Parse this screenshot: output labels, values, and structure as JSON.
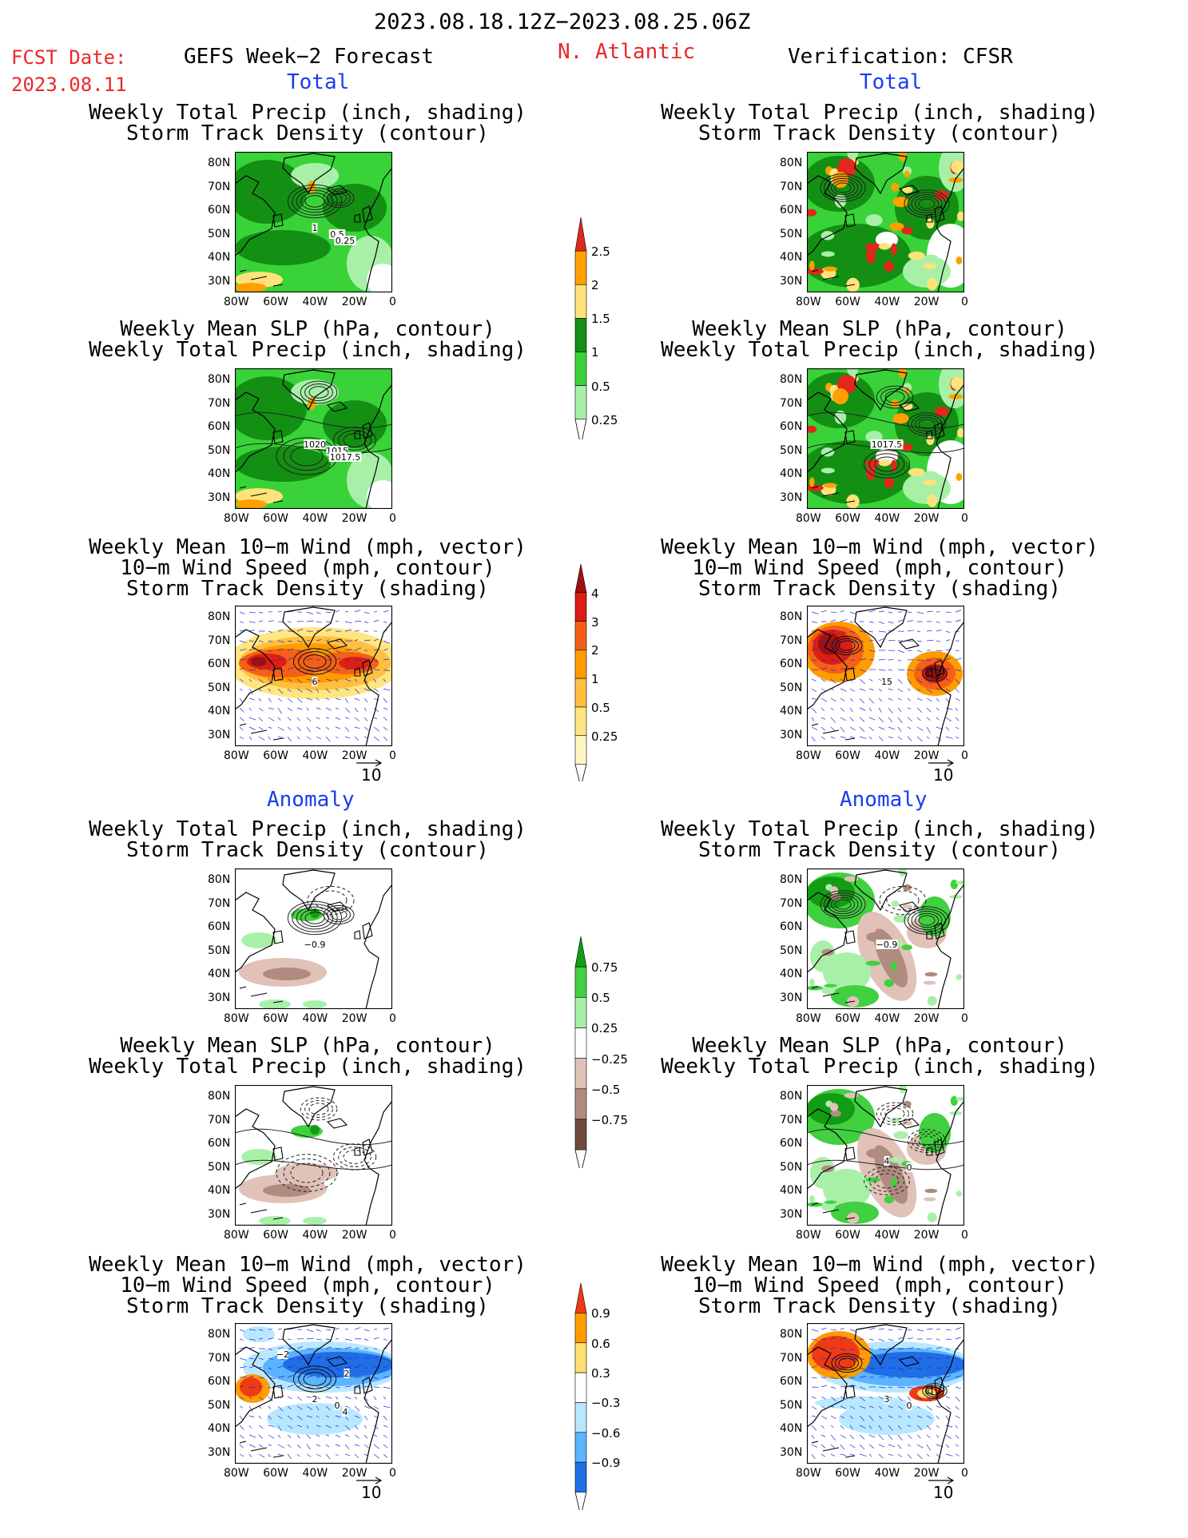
{
  "header": {
    "date_range": "2023.08.18.12Z−2023.08.25.06Z",
    "fcst_label": "FCST Date:",
    "fcst_date": "2023.08.11",
    "model_title": "GEFS Week−2 Forecast",
    "region": "N. Atlantic",
    "verification": "Verification: CFSR"
  },
  "sections": {
    "total": "Total",
    "anomaly": "Anomaly"
  },
  "panel_titles": {
    "precip_storm": [
      "Weekly Total Precip (inch, shading)",
      "Storm Track Density (contour)"
    ],
    "slp_precip": [
      "Weekly Mean SLP (hPa, contour)",
      "Weekly Total Precip (inch, shading)"
    ],
    "wind_storm": [
      "Weekly Mean 10−m Wind (mph, vector)",
      "10−m Wind Speed (mph, contour)",
      "Storm Track Density (shading)"
    ]
  },
  "axes": {
    "lat_ticks": [
      "80N",
      "70N",
      "60N",
      "50N",
      "40N",
      "30N"
    ],
    "lon_ticks": [
      "80W",
      "60W",
      "40W",
      "20W",
      "0"
    ]
  },
  "vector_ref": "10",
  "contour_labels": {
    "f_precip": [
      "1",
      "0.5",
      "0.25"
    ],
    "f_slp": [
      "1020",
      "1015",
      "1017.5"
    ],
    "f_wind": [
      "6"
    ],
    "v_slp": [
      "1017.5"
    ],
    "v_wind": [
      "15"
    ],
    "fa_precip": [
      "−0.9"
    ],
    "va_precip": [
      "−0.9"
    ],
    "fa_wind": [
      "2",
      "0",
      "4",
      "−2",
      "2"
    ],
    "va_wind": [
      "3",
      "0"
    ],
    "va_slp": [
      "4",
      "0"
    ]
  },
  "colorbars": {
    "precip_total": {
      "labels": [
        "2.5",
        "2",
        "1.5",
        "1",
        "0.5",
        "0.25"
      ],
      "colors": [
        "#e0281c",
        "#ffa000",
        "#ffe27a",
        "#138f13",
        "#39d339",
        "#a8f0a8"
      ]
    },
    "storm_total": {
      "labels": [
        "4",
        "3",
        "2",
        "1",
        "0.5",
        "0.25"
      ],
      "colors": [
        "#a01010",
        "#dc1e14",
        "#f56014",
        "#ff9c00",
        "#ffc040",
        "#ffe680",
        "#fff6c0"
      ]
    },
    "precip_anom": {
      "labels": [
        "0.75",
        "0.5",
        "0.25",
        "−0.25",
        "−0.5",
        "−0.75"
      ],
      "colors": [
        "#139c13",
        "#40d040",
        "#a8f0a8",
        "#ffffff",
        "#e0c2b8",
        "#b08c80",
        "#6e4a3e"
      ]
    },
    "storm_anom": {
      "labels": [
        "0.9",
        "0.6",
        "0.3",
        "−0.3",
        "−0.6",
        "−0.9"
      ],
      "colors": [
        "#f03a14",
        "#ff9c00",
        "#ffe070",
        "#ffffff",
        "#b8e8ff",
        "#5ab4ff",
        "#1f6ee6"
      ]
    }
  }
}
